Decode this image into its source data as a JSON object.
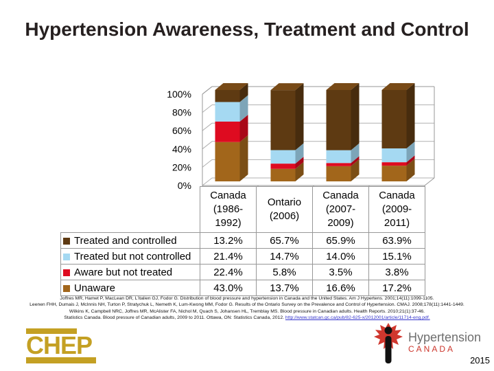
{
  "slide": {
    "title": "Hypertension Awareness, Treatment and Control"
  },
  "chart_data": {
    "type": "bar",
    "subtype": "3d-stacked-percent",
    "title": "",
    "xlabel": "",
    "ylabel": "",
    "categories": [
      "Canada (1986-1992)",
      "Ontario (2006)",
      "Canada (2007-2009)",
      "Canada (2009-2011)"
    ],
    "categories_display": [
      [
        "Canada",
        "(1986-",
        "1992)"
      ],
      [
        "Ontario",
        "(2006)"
      ],
      [
        "Canada",
        "(2007-",
        "2009)"
      ],
      [
        "Canada",
        "(2009-",
        "2011)"
      ]
    ],
    "series": [
      {
        "name": "Treated and controlled",
        "values": [
          13.2,
          65.7,
          65.9,
          63.9
        ],
        "color": "#5E3A12"
      },
      {
        "name": "Treated but not controlled",
        "values": [
          21.4,
          14.7,
          14.0,
          15.1
        ],
        "color": "#A5D9F2"
      },
      {
        "name": "Aware but not treated",
        "values": [
          22.4,
          5.8,
          3.5,
          3.8
        ],
        "color": "#DE0B20"
      },
      {
        "name": "Unaware",
        "values": [
          43.0,
          13.7,
          16.6,
          17.2
        ],
        "color": "#A2661B"
      }
    ],
    "stack_order_bottom_to_top": [
      "Unaware",
      "Aware but not treated",
      "Treated but not controlled",
      "Treated and controlled"
    ],
    "ylim": [
      0,
      100
    ],
    "ytick_step": 20,
    "ytick_labels": [
      "0%",
      "20%",
      "40%",
      "60%",
      "80%",
      "100%"
    ],
    "grid": true,
    "legend_position": "table-rows-left-of-values"
  },
  "citations": {
    "line1": "Joffres MR, Hamet P, MacLean DR, L'italien GJ, Fodor G. Distribution of blood pressure and hypertension in Canada and the United States. Am J Hypertens. 2001;14(11):1099-1105.",
    "line2": "Leenen FHH, Dumais J, McInnis NH, Turton P, Stratychuk L, Nemeth K, Lum-Kwong MM, Fodor G. Results of the Ontario Survey on the Prevalence and Control of Hypertension. CMAJ. 2008;178(11):1441-1449.",
    "line3": "Wilkins K, Campbell NRC, Joffres MR, McAlister FA, Nichol M, Quach S, Johansen HL, Tremblay MS. Blood pressure in Canadian adults. Health Reports. 2010;21(1):37-46.",
    "line4_text": "Statistics Canada. Blood pressure of Canadian adults, 2009 to 2011. Ottawa, ON: Statistics Canada, 2012. ",
    "line4_link": "http://www.statcan.gc.ca/pub/82-625-x/2012001/article/11714-eng.pdf."
  },
  "footer": {
    "chep_text": "CHEP",
    "chep_color": "#C4A023",
    "org_name": "Hypertension",
    "org_country": "CANADA",
    "org_red": "#CC352B",
    "leaf_red": "#D0372E",
    "year": "2015"
  }
}
